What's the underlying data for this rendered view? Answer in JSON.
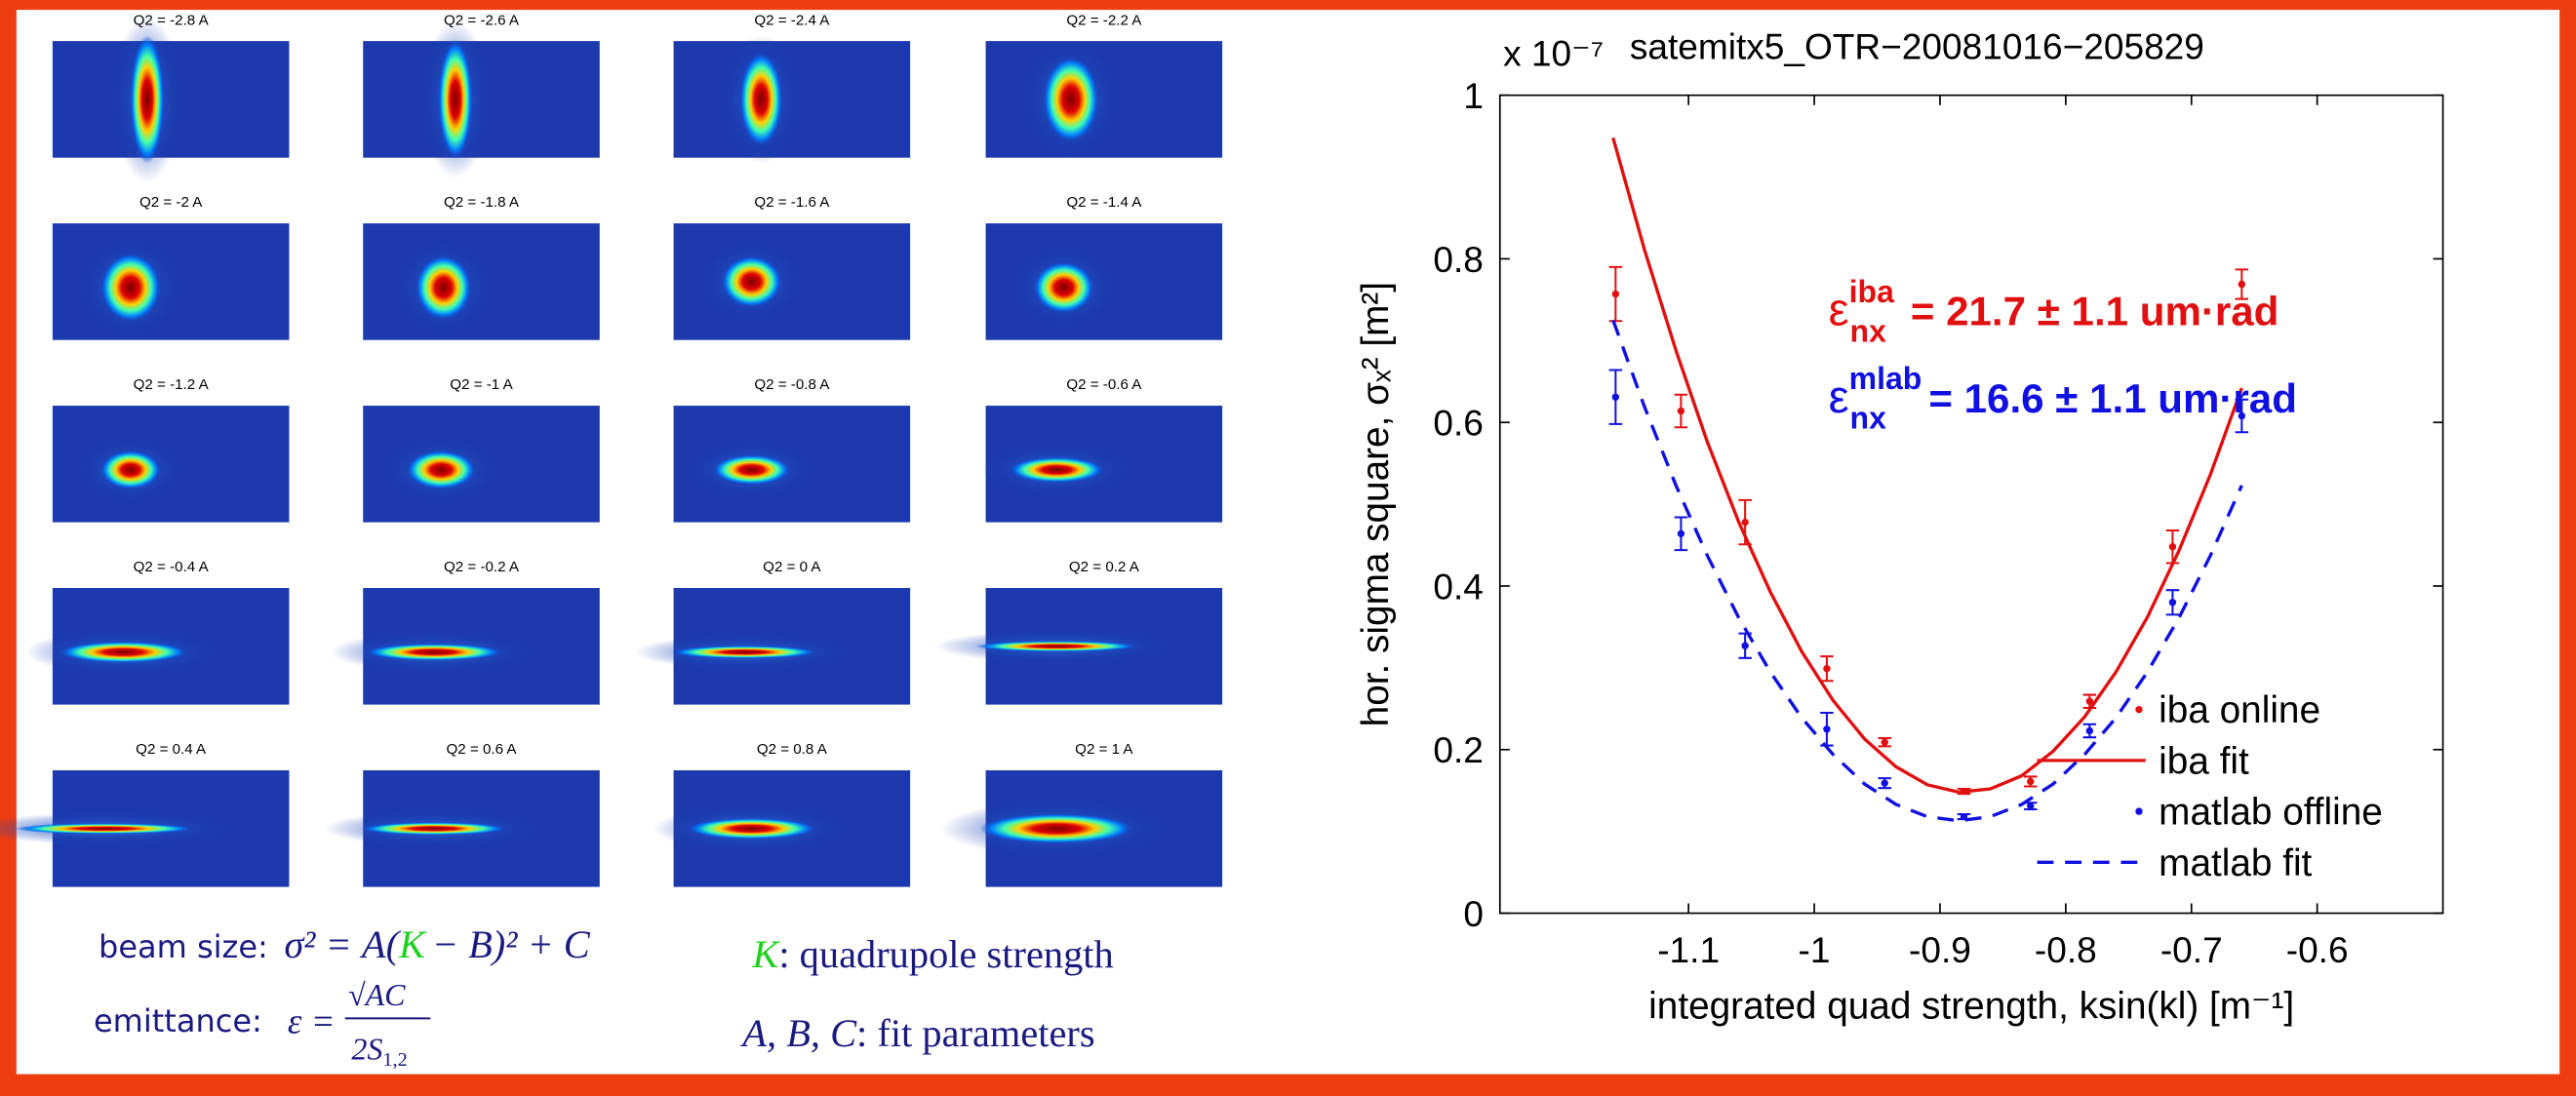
{
  "images": {
    "labels": [
      "Q2 = -2.8 A",
      "Q2 = -2.6 A",
      "Q2 = -2.4 A",
      "Q2 = -2.2 A",
      "Q2 = -2 A",
      "Q2 = -1.8 A",
      "Q2 = -1.6 A",
      "Q2 = -1.4 A",
      "Q2 = -1.2 A",
      "Q2 = -1 A",
      "Q2 = -0.8 A",
      "Q2 = -0.6 A",
      "Q2 = -0.4 A",
      "Q2 = -0.2 A",
      "Q2 = 0 A",
      "Q2 = 0.2 A",
      "Q2 = 0.4 A",
      "Q2 = 0.6 A",
      "Q2 = 0.8 A",
      "Q2 = 1 A"
    ]
  },
  "notes": {
    "beam_size_label": "beam size:",
    "beam_size_formula": [
      "σ² = A(",
      "K",
      "− B)² + C"
    ],
    "emittance_label": "emittance:",
    "emittance_lhs": "ε =",
    "emittance_numerator": "√AC",
    "emittance_denominator": [
      "2S",
      "1,2"
    ],
    "k_symbol": "K",
    "k_text": ":  quadrupole strength",
    "abc_symbol": "A, B, C",
    "abc_text": ":  fit parameters"
  },
  "chart_data": {
    "type": "scatter",
    "title": "satemitx5_OTR−20081016−205829",
    "y_multiplier": "x 10⁻⁷",
    "x_label": "integrated quad strength, ksin(kl) [m⁻¹]",
    "y_label": "hor. sigma square, σₓ² [m²]",
    "xlim": [
      -1.25,
      -0.5
    ],
    "ylim": [
      0,
      1
    ],
    "xticks": [
      -1.1,
      -1,
      -0.9,
      -0.8,
      -0.7,
      -0.6
    ],
    "yticks": [
      0,
      0.2,
      0.4,
      0.6,
      0.8,
      1
    ],
    "legend": "lower right",
    "x": [
      -1.158,
      -1.106,
      -1.055,
      -0.99,
      -0.944,
      -0.881,
      -0.828,
      -0.781,
      -0.715,
      -0.66
    ],
    "series": [
      {
        "name": "iba online",
        "color": "#e01010",
        "kind": "points",
        "values": [
          0.757,
          0.614,
          0.478,
          0.299,
          0.209,
          0.149,
          0.161,
          0.259,
          0.448,
          0.769
        ],
        "errors": [
          0.033,
          0.02,
          0.027,
          0.015,
          0.005,
          0.003,
          0.006,
          0.008,
          0.02,
          0.018
        ]
      },
      {
        "name": "iba fit",
        "color": "#e01010",
        "kind": "line",
        "dash": false,
        "x": [
          -1.16,
          -1.135,
          -1.11,
          -1.085,
          -1.06,
          -1.035,
          -1.01,
          -0.985,
          -0.96,
          -0.935,
          -0.91,
          -0.885,
          -0.86,
          -0.835,
          -0.81,
          -0.785,
          -0.76,
          -0.735,
          -0.71,
          -0.685,
          -0.66
        ],
        "values": [
          0.948,
          0.811,
          0.688,
          0.576,
          0.478,
          0.393,
          0.32,
          0.26,
          0.213,
          0.179,
          0.157,
          0.148,
          0.152,
          0.168,
          0.198,
          0.24,
          0.295,
          0.362,
          0.443,
          0.536,
          0.642
        ]
      },
      {
        "name": "matlab offline",
        "color": "#1010e0",
        "kind": "points",
        "values": [
          0.631,
          0.464,
          0.327,
          0.225,
          0.159,
          0.118,
          0.131,
          0.223,
          0.38,
          0.608
        ],
        "errors": [
          0.033,
          0.02,
          0.015,
          0.02,
          0.006,
          0.003,
          0.004,
          0.008,
          0.015,
          0.02
        ]
      },
      {
        "name": "matlab fit",
        "color": "#1010e0",
        "kind": "line",
        "dash": true,
        "x": [
          -1.16,
          -1.135,
          -1.11,
          -1.085,
          -1.06,
          -1.035,
          -1.01,
          -0.985,
          -0.96,
          -0.935,
          -0.91,
          -0.885,
          -0.86,
          -0.835,
          -0.81,
          -0.785,
          -0.76,
          -0.735,
          -0.71,
          -0.685,
          -0.66
        ],
        "values": [
          0.725,
          0.619,
          0.523,
          0.437,
          0.361,
          0.295,
          0.239,
          0.194,
          0.158,
          0.133,
          0.118,
          0.113,
          0.118,
          0.133,
          0.158,
          0.194,
          0.239,
          0.295,
          0.361,
          0.437,
          0.523
        ]
      }
    ],
    "annotations": [
      {
        "symbol": "ε",
        "sub": "nx",
        "sup": "iba",
        "text": "= 21.7 ± 1.1 um·rad",
        "color": "#e01010"
      },
      {
        "symbol": "ε",
        "sub": "nx",
        "sup": "mlab",
        "text": "= 16.6 ± 1.1 um·rad",
        "color": "#1010e0"
      }
    ]
  }
}
